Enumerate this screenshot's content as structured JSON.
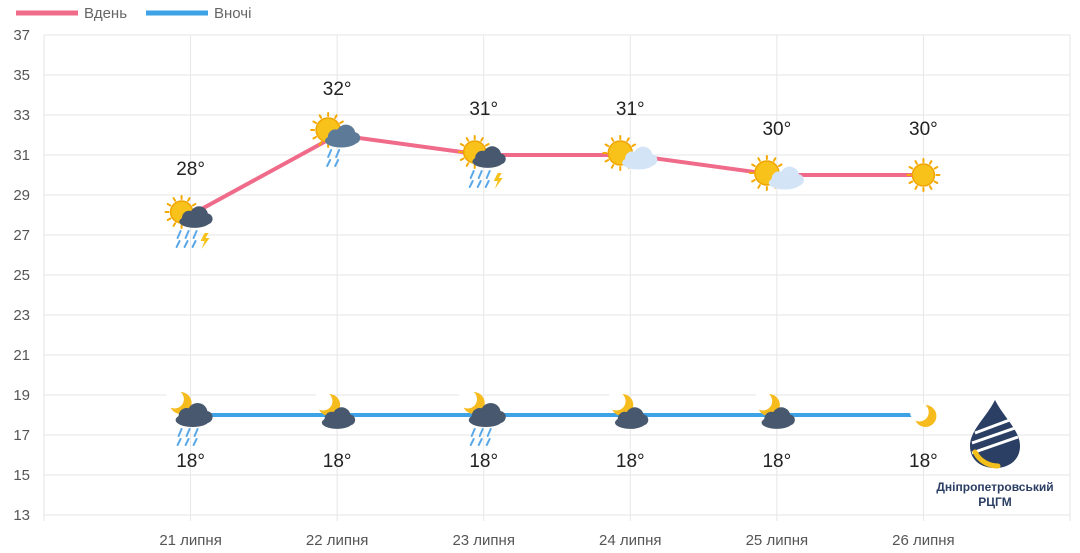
{
  "chart_data": {
    "type": "line",
    "categories": [
      "21 липня",
      "22 липня",
      "23 липня",
      "24 липня",
      "25 липня",
      "26 липня"
    ],
    "series": [
      {
        "name": "Вдень",
        "color": "#f06b8a",
        "values": [
          28,
          32,
          31,
          31,
          30,
          30
        ],
        "labels": [
          "28°",
          "32°",
          "31°",
          "31°",
          "30°",
          "30°"
        ],
        "icons": [
          "sun-cloud-rain-thunder-icon",
          "sun-cloud-rain-icon",
          "sun-cloud-rain-thunder-icon",
          "sun-cloud-icon",
          "sun-cloud-icon",
          "sun-icon"
        ]
      },
      {
        "name": "Вночі",
        "color": "#3ea2e6",
        "values": [
          18,
          18,
          18,
          18,
          18,
          18
        ],
        "labels": [
          "18°",
          "18°",
          "18°",
          "18°",
          "18°",
          "18°"
        ],
        "icons": [
          "moon-cloud-rain-icon",
          "moon-cloud-icon",
          "moon-cloud-rain-icon",
          "moon-cloud-icon",
          "moon-cloud-icon",
          "moon-icon"
        ]
      }
    ],
    "yticks": [
      13,
      15,
      17,
      19,
      21,
      23,
      25,
      27,
      29,
      31,
      33,
      35,
      37
    ],
    "ylim": [
      13,
      37
    ],
    "grid": true,
    "legend": "top-left",
    "title": "",
    "xlabel": "",
    "ylabel": ""
  },
  "logo": {
    "name": "Дніпропетровський",
    "subname": "РЦГМ"
  }
}
